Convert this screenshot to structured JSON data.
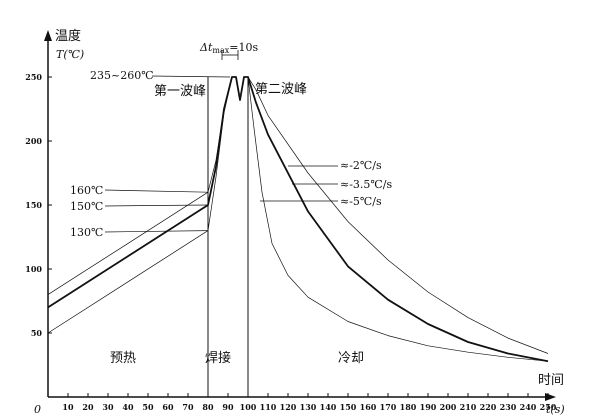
{
  "chart_data": {
    "type": "line",
    "xlabel": "时间",
    "xunit": "t(s)",
    "ylabel": "温度",
    "yunit": "T(℃)",
    "origin_label": "0",
    "xlim": [
      0,
      250
    ],
    "ylim": [
      0,
      260
    ],
    "xticks": [
      10,
      20,
      30,
      40,
      50,
      60,
      70,
      80,
      90,
      100,
      110,
      120,
      130,
      140,
      150,
      160,
      170,
      180,
      190,
      200,
      210,
      220,
      230,
      240,
      250
    ],
    "yticks": [
      50,
      100,
      150,
      200,
      250
    ],
    "grid": false,
    "annotations": {
      "peak_temp": "235~260℃",
      "first_wave": "第一波峰",
      "second_wave": "第二波峰",
      "delta_t": "Δt",
      "delta_t_sub": "max",
      "delta_t_val": "=10s",
      "t160": "160℃",
      "t150": "150℃",
      "t130": "130℃",
      "rate_2": "≈-2℃/s",
      "rate_35": "≈-3.5℃/s",
      "rate_5": "≈-5℃/s",
      "zone_preheat": "预热",
      "zone_solder": "焊接",
      "zone_cool": "冷却"
    },
    "series": [
      {
        "x": [
          0,
          80,
          84,
          88,
          92,
          94,
          96,
          98,
          100,
          104,
          110,
          130,
          150,
          170,
          190,
          210,
          230,
          250
        ],
        "y": [
          80,
          160,
          185,
          225,
          250,
          250,
          232,
          250,
          250,
          240,
          220,
          175,
          137,
          107,
          82,
          62,
          46,
          34
        ],
        "width": 0.7
      },
      {
        "x": [
          0,
          80,
          84,
          88,
          92,
          94,
          96,
          98,
          100,
          104,
          110,
          130,
          150,
          170,
          190,
          210,
          230,
          250
        ],
        "y": [
          70,
          150,
          180,
          225,
          250,
          250,
          232,
          250,
          250,
          230,
          205,
          145,
          102,
          76,
          57,
          43,
          34,
          28
        ],
        "width": 1.8
      },
      {
        "x": [
          0,
          80,
          84,
          88,
          92,
          94,
          96,
          98,
          100,
          103,
          107,
          112,
          120,
          130,
          150,
          170,
          190,
          210,
          230,
          250
        ],
        "y": [
          50,
          130,
          172,
          222,
          250,
          250,
          232,
          250,
          250,
          210,
          160,
          120,
          95,
          78,
          59,
          48,
          40,
          35,
          31,
          28
        ],
        "width": 0.7
      }
    ]
  }
}
